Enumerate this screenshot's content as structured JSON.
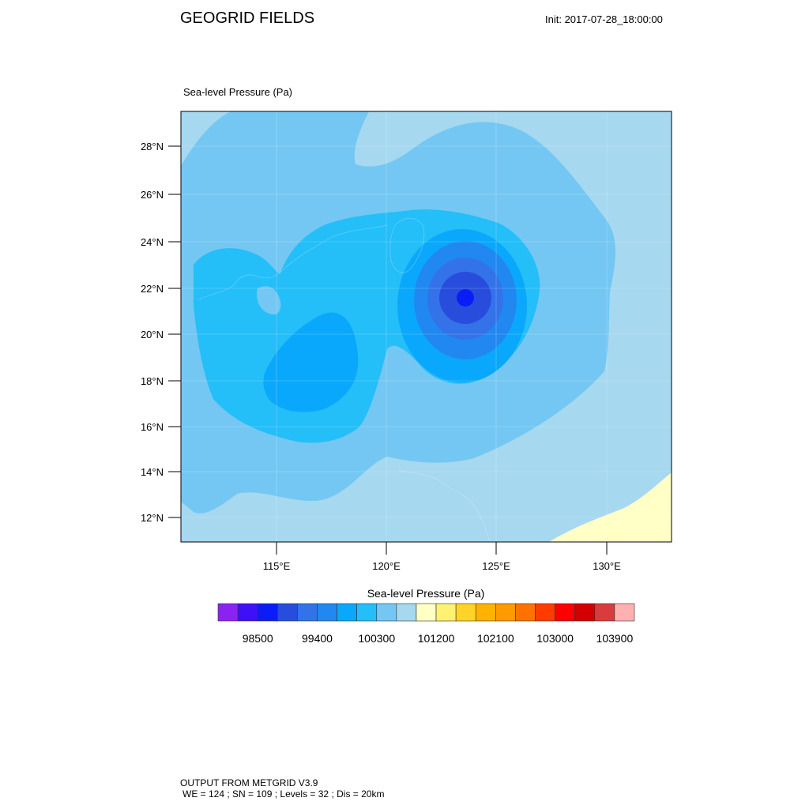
{
  "header": {
    "title": "GEOGRID FIELDS",
    "init_time": "Init: 2017-07-28_18:00:00",
    "field_title": "Sea-level Pressure   (Pa)"
  },
  "map": {
    "lat_ticks": [
      "12°N",
      "14°N",
      "16°N",
      "18°N",
      "20°N",
      "22°N",
      "24°N",
      "26°N",
      "28°N"
    ],
    "lon_ticks": [
      "115°E",
      "120°E",
      "125°E",
      "130°E"
    ],
    "colors": {
      "level_100900": "#a6d8f0",
      "level_100600": "#74c7f2",
      "level_100300": "#24bef8",
      "level_100000": "#0aa8fc",
      "level_99700": "#2188f2",
      "level_99400": "#3472ea",
      "level_99100": "#284ddd",
      "level_98800": "#0b1df7",
      "level_101200": "#ffffc6"
    }
  },
  "colorbar": {
    "title": "Sea-level Pressure  (Pa)",
    "swatches": [
      "#8a23f2",
      "#3d10f7",
      "#0b1df7",
      "#284ddd",
      "#3472ea",
      "#2188f2",
      "#0aa8fc",
      "#24bef8",
      "#74c7f2",
      "#a6d8f0",
      "#ffffc6",
      "#fff270",
      "#ffd426",
      "#ffb300",
      "#ff9a00",
      "#ff7200",
      "#ff3b00",
      "#ff0000",
      "#d30000",
      "#d93c3c",
      "#ffb0b0"
    ],
    "labels": [
      "98500",
      "99400",
      "100300",
      "101200",
      "102100",
      "103000",
      "103900"
    ]
  },
  "footer": {
    "line1": "OUTPUT FROM METGRID V3.9",
    "line2": "WE = 124 ; SN = 109 ; Levels = 32 ; Dis = 20km"
  }
}
